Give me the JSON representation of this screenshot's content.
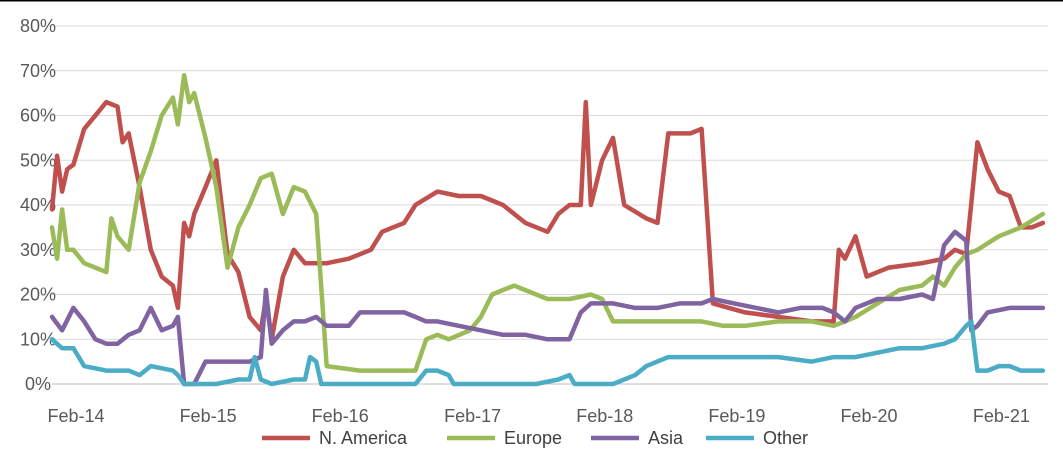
{
  "chart_data": {
    "type": "line",
    "title": "",
    "xlabel": "",
    "ylabel": "",
    "ylim": [
      0,
      80
    ],
    "y_unit": "%",
    "y_ticks": [
      "0%",
      "10%",
      "20%",
      "30%",
      "40%",
      "50%",
      "60%",
      "70%",
      "80%"
    ],
    "x_ticks": [
      "Feb-14",
      "Feb-15",
      "Feb-16",
      "Feb-17",
      "Feb-18",
      "Feb-19",
      "Feb-20",
      "Feb-21"
    ],
    "grid": true,
    "legend_position": "bottom",
    "series": [
      {
        "name": "N. America",
        "color": "#C0504D",
        "points": [
          [
            "2014-02",
            39
          ],
          [
            "2014-02-15",
            51
          ],
          [
            "2014-03",
            43
          ],
          [
            "2014-03-15",
            48
          ],
          [
            "2014-04",
            49
          ],
          [
            "2014-05",
            57
          ],
          [
            "2014-06",
            60
          ],
          [
            "2014-07",
            63
          ],
          [
            "2014-08",
            62
          ],
          [
            "2014-08-15",
            54
          ],
          [
            "2014-09",
            56
          ],
          [
            "2014-10",
            44
          ],
          [
            "2014-11",
            30
          ],
          [
            "2014-12",
            24
          ],
          [
            "2015-01",
            22
          ],
          [
            "2015-01-15",
            17
          ],
          [
            "2015-02",
            36
          ],
          [
            "2015-02-15",
            33
          ],
          [
            "2015-03",
            38
          ],
          [
            "2015-04",
            44
          ],
          [
            "2015-05",
            50
          ],
          [
            "2015-06",
            29
          ],
          [
            "2015-07",
            25
          ],
          [
            "2015-08",
            15
          ],
          [
            "2015-09",
            12
          ],
          [
            "2015-09-15",
            19
          ],
          [
            "2015-10",
            10
          ],
          [
            "2015-11",
            24
          ],
          [
            "2015-12",
            30
          ],
          [
            "2016-01",
            27
          ],
          [
            "2016-03",
            27
          ],
          [
            "2016-05",
            28
          ],
          [
            "2016-07",
            30
          ],
          [
            "2016-08",
            34
          ],
          [
            "2016-10",
            36
          ],
          [
            "2016-11",
            40
          ],
          [
            "2017-01",
            43
          ],
          [
            "2017-03",
            42
          ],
          [
            "2017-05",
            42
          ],
          [
            "2017-07",
            40
          ],
          [
            "2017-09",
            36
          ],
          [
            "2017-11",
            34
          ],
          [
            "2017-12",
            38
          ],
          [
            "2018-01",
            40
          ],
          [
            "2018-02",
            40
          ],
          [
            "2018-02-15",
            63
          ],
          [
            "2018-03",
            40
          ],
          [
            "2018-04",
            50
          ],
          [
            "2018-05",
            55
          ],
          [
            "2018-06",
            40
          ],
          [
            "2018-08",
            37
          ],
          [
            "2018-09",
            36
          ],
          [
            "2018-10",
            56
          ],
          [
            "2018-11",
            56
          ],
          [
            "2018-12",
            56
          ],
          [
            "2019-01",
            57
          ],
          [
            "2019-02",
            18
          ],
          [
            "2019-05",
            16
          ],
          [
            "2019-08",
            15
          ],
          [
            "2019-11",
            14
          ],
          [
            "2020-01",
            14
          ],
          [
            "2020-01-15",
            30
          ],
          [
            "2020-02",
            28
          ],
          [
            "2020-03",
            33
          ],
          [
            "2020-04",
            24
          ],
          [
            "2020-06",
            26
          ],
          [
            "2020-09",
            27
          ],
          [
            "2020-11",
            28
          ],
          [
            "2020-12",
            30
          ],
          [
            "2021-01",
            29
          ],
          [
            "2021-02",
            54
          ],
          [
            "2021-03",
            48
          ],
          [
            "2021-04",
            43
          ],
          [
            "2021-05",
            42
          ],
          [
            "2021-06",
            35
          ],
          [
            "2021-07",
            35
          ],
          [
            "2021-08",
            36
          ]
        ]
      },
      {
        "name": "Europe",
        "color": "#9BBB59",
        "points": [
          [
            "2014-02",
            35
          ],
          [
            "2014-02-15",
            28
          ],
          [
            "2014-03",
            39
          ],
          [
            "2014-03-15",
            30
          ],
          [
            "2014-04",
            30
          ],
          [
            "2014-05",
            27
          ],
          [
            "2014-06",
            26
          ],
          [
            "2014-07",
            25
          ],
          [
            "2014-07-15",
            37
          ],
          [
            "2014-08",
            33
          ],
          [
            "2014-09",
            30
          ],
          [
            "2014-10",
            45
          ],
          [
            "2014-11",
            52
          ],
          [
            "2014-12",
            60
          ],
          [
            "2015-01",
            64
          ],
          [
            "2015-01-15",
            58
          ],
          [
            "2015-02",
            69
          ],
          [
            "2015-02-15",
            63
          ],
          [
            "2015-03",
            65
          ],
          [
            "2015-04",
            55
          ],
          [
            "2015-05",
            44
          ],
          [
            "2015-06",
            26
          ],
          [
            "2015-07",
            35
          ],
          [
            "2015-08",
            40
          ],
          [
            "2015-09",
            46
          ],
          [
            "2015-10",
            47
          ],
          [
            "2015-11",
            38
          ],
          [
            "2015-12",
            44
          ],
          [
            "2016-01",
            43
          ],
          [
            "2016-02",
            38
          ],
          [
            "2016-03",
            4
          ],
          [
            "2016-06",
            3
          ],
          [
            "2016-09",
            3
          ],
          [
            "2016-11",
            3
          ],
          [
            "2016-12",
            10
          ],
          [
            "2017-01",
            11
          ],
          [
            "2017-02",
            10
          ],
          [
            "2017-04",
            12
          ],
          [
            "2017-05",
            15
          ],
          [
            "2017-06",
            20
          ],
          [
            "2017-07",
            21
          ],
          [
            "2017-08",
            22
          ],
          [
            "2017-10",
            20
          ],
          [
            "2017-11",
            19
          ],
          [
            "2018-01",
            19
          ],
          [
            "2018-03",
            20
          ],
          [
            "2018-04",
            19
          ],
          [
            "2018-05",
            14
          ],
          [
            "2018-07",
            14
          ],
          [
            "2018-09",
            14
          ],
          [
            "2018-11",
            14
          ],
          [
            "2019-01",
            14
          ],
          [
            "2019-03",
            13
          ],
          [
            "2019-05",
            13
          ],
          [
            "2019-08",
            14
          ],
          [
            "2019-11",
            14
          ],
          [
            "2020-01",
            13
          ],
          [
            "2020-02",
            14
          ],
          [
            "2020-03",
            15
          ],
          [
            "2020-05",
            18
          ],
          [
            "2020-07",
            21
          ],
          [
            "2020-09",
            22
          ],
          [
            "2020-10",
            24
          ],
          [
            "2020-11",
            22
          ],
          [
            "2020-12",
            26
          ],
          [
            "2021-01",
            29
          ],
          [
            "2021-02",
            30
          ],
          [
            "2021-04",
            33
          ],
          [
            "2021-06",
            35
          ],
          [
            "2021-08",
            38
          ]
        ]
      },
      {
        "name": "Asia",
        "color": "#8064A2",
        "points": [
          [
            "2014-02",
            15
          ],
          [
            "2014-03",
            12
          ],
          [
            "2014-04",
            17
          ],
          [
            "2014-05",
            14
          ],
          [
            "2014-06",
            10
          ],
          [
            "2014-07",
            9
          ],
          [
            "2014-08",
            9
          ],
          [
            "2014-09",
            11
          ],
          [
            "2014-10",
            12
          ],
          [
            "2014-11",
            17
          ],
          [
            "2014-12",
            12
          ],
          [
            "2015-01",
            13
          ],
          [
            "2015-01-15",
            15
          ],
          [
            "2015-02",
            0
          ],
          [
            "2015-03",
            0
          ],
          [
            "2015-04",
            5
          ],
          [
            "2015-06",
            5
          ],
          [
            "2015-08",
            5
          ],
          [
            "2015-09",
            6
          ],
          [
            "2015-09-15",
            21
          ],
          [
            "2015-10",
            9
          ],
          [
            "2015-11",
            12
          ],
          [
            "2015-12",
            14
          ],
          [
            "2016-01",
            14
          ],
          [
            "2016-02",
            15
          ],
          [
            "2016-03",
            13
          ],
          [
            "2016-05",
            13
          ],
          [
            "2016-06",
            16
          ],
          [
            "2016-08",
            16
          ],
          [
            "2016-10",
            16
          ],
          [
            "2016-11",
            15
          ],
          [
            "2016-12",
            14
          ],
          [
            "2017-01",
            14
          ],
          [
            "2017-03",
            13
          ],
          [
            "2017-05",
            12
          ],
          [
            "2017-07",
            11
          ],
          [
            "2017-09",
            11
          ],
          [
            "2017-11",
            10
          ],
          [
            "2017-12",
            10
          ],
          [
            "2018-01",
            10
          ],
          [
            "2018-02",
            16
          ],
          [
            "2018-03",
            18
          ],
          [
            "2018-05",
            18
          ],
          [
            "2018-07",
            17
          ],
          [
            "2018-09",
            17
          ],
          [
            "2018-11",
            18
          ],
          [
            "2019-01",
            18
          ],
          [
            "2019-02",
            19
          ],
          [
            "2019-04",
            18
          ],
          [
            "2019-06",
            17
          ],
          [
            "2019-08",
            16
          ],
          [
            "2019-10",
            17
          ],
          [
            "2019-12",
            17
          ],
          [
            "2020-01",
            16
          ],
          [
            "2020-02",
            14
          ],
          [
            "2020-03",
            17
          ],
          [
            "2020-05",
            19
          ],
          [
            "2020-07",
            19
          ],
          [
            "2020-09",
            20
          ],
          [
            "2020-10",
            19
          ],
          [
            "2020-11",
            31
          ],
          [
            "2020-12",
            34
          ],
          [
            "2021-01",
            32
          ],
          [
            "2021-01-15",
            12
          ],
          [
            "2021-02",
            13
          ],
          [
            "2021-03",
            16
          ],
          [
            "2021-05",
            17
          ],
          [
            "2021-07",
            17
          ],
          [
            "2021-08",
            17
          ]
        ]
      },
      {
        "name": "Other",
        "color": "#4BACC6",
        "points": [
          [
            "2014-02",
            10
          ],
          [
            "2014-03",
            8
          ],
          [
            "2014-04",
            8
          ],
          [
            "2014-05",
            4
          ],
          [
            "2014-07",
            3
          ],
          [
            "2014-09",
            3
          ],
          [
            "2014-10",
            2
          ],
          [
            "2014-11",
            4
          ],
          [
            "2015-01",
            3
          ],
          [
            "2015-01-15",
            2
          ],
          [
            "2015-02",
            0
          ],
          [
            "2015-05",
            0
          ],
          [
            "2015-07",
            1
          ],
          [
            "2015-08",
            1
          ],
          [
            "2015-08-15",
            6
          ],
          [
            "2015-09",
            1
          ],
          [
            "2015-10",
            0
          ],
          [
            "2015-12",
            1
          ],
          [
            "2016-01",
            1
          ],
          [
            "2016-01-15",
            6
          ],
          [
            "2016-02",
            5
          ],
          [
            "2016-02-15",
            0
          ],
          [
            "2016-05",
            0
          ],
          [
            "2016-08",
            0
          ],
          [
            "2016-11",
            0
          ],
          [
            "2016-12",
            3
          ],
          [
            "2017-01",
            3
          ],
          [
            "2017-02",
            2
          ],
          [
            "2017-02-15",
            0
          ],
          [
            "2017-06",
            0
          ],
          [
            "2017-10",
            0
          ],
          [
            "2017-12",
            1
          ],
          [
            "2018-01",
            2
          ],
          [
            "2018-01-15",
            0
          ],
          [
            "2018-05",
            0
          ],
          [
            "2018-07",
            2
          ],
          [
            "2018-08",
            4
          ],
          [
            "2018-10",
            6
          ],
          [
            "2018-12",
            6
          ],
          [
            "2019-02",
            6
          ],
          [
            "2019-05",
            6
          ],
          [
            "2019-08",
            6
          ],
          [
            "2019-11",
            5
          ],
          [
            "2020-01",
            6
          ],
          [
            "2020-03",
            6
          ],
          [
            "2020-05",
            7
          ],
          [
            "2020-07",
            8
          ],
          [
            "2020-09",
            8
          ],
          [
            "2020-11",
            9
          ],
          [
            "2020-12",
            10
          ],
          [
            "2021-01",
            13
          ],
          [
            "2021-01-15",
            14
          ],
          [
            "2021-02",
            3
          ],
          [
            "2021-03",
            3
          ],
          [
            "2021-04",
            4
          ],
          [
            "2021-05",
            4
          ],
          [
            "2021-06",
            3
          ],
          [
            "2021-07",
            3
          ],
          [
            "2021-08",
            3
          ]
        ]
      }
    ]
  }
}
